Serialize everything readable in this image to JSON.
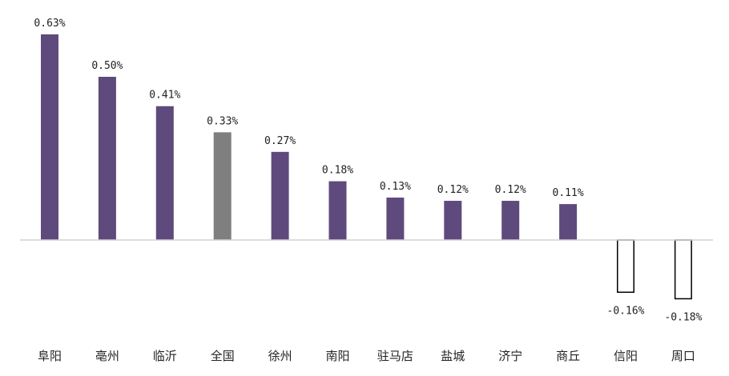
{
  "chart_data": {
    "type": "bar",
    "categories": [
      "阜阳",
      "亳州",
      "临沂",
      "全国",
      "徐州",
      "南阳",
      "驻马店",
      "盐城",
      "济宁",
      "商丘",
      "信阳",
      "周口"
    ],
    "values": [
      0.63,
      0.5,
      0.41,
      0.33,
      0.27,
      0.18,
      0.13,
      0.12,
      0.12,
      0.11,
      -0.16,
      -0.18
    ],
    "labels": [
      "0.63%",
      "0.50%",
      "0.41%",
      "0.33%",
      "0.27%",
      "0.18%",
      "0.13%",
      "0.12%",
      "0.12%",
      "0.11%",
      "-0.16%",
      "-0.18%"
    ],
    "title": "",
    "xlabel": "",
    "ylabel": "",
    "ylim": [
      -0.18,
      0.63
    ],
    "grid": false,
    "legend": "none",
    "colors": {
      "default": "#5e4a7c",
      "highlight": "#7f7f7f",
      "negative_fill": "#ffffff",
      "negative_stroke": "#000000",
      "axis": "#d0d0d0"
    },
    "highlight_category": "全国"
  }
}
